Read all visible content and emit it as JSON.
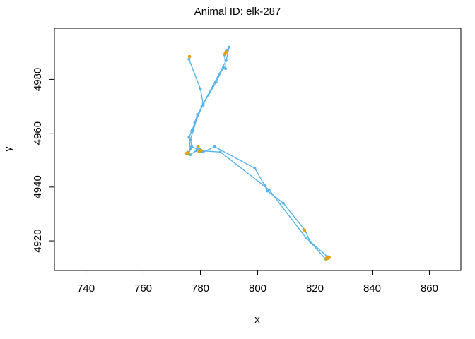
{
  "chart_data": {
    "type": "scatter",
    "title": "Animal ID: elk-287",
    "xlabel": "x",
    "ylabel": "y",
    "xlim": [
      729,
      871
    ],
    "ylim": [
      4909,
      4999
    ],
    "x_ticks": [
      740,
      760,
      780,
      800,
      820,
      840,
      860
    ],
    "y_ticks": [
      4920,
      4940,
      4960,
      4980
    ],
    "grid": false,
    "legend": "none",
    "colors": {
      "track": "#56B4E9",
      "highlight": "#E69F00",
      "axes": "#000000"
    },
    "series": [
      {
        "points": [
          [
            776.2,
            4988.5
          ],
          [
            776.0,
            4987.5
          ],
          [
            780.0,
            4976.5
          ],
          [
            781.0,
            4970.5
          ],
          [
            779.0,
            4967.0
          ],
          [
            778.0,
            4964.0
          ],
          [
            777.0,
            4960.5
          ],
          [
            776.0,
            4958.5
          ],
          [
            776.5,
            4954.0
          ],
          [
            776.0,
            4952.5
          ],
          [
            775.2,
            4952.5
          ],
          [
            775.5,
            4953.0
          ],
          [
            776.5,
            4952.0
          ],
          [
            778.5,
            4953.5
          ],
          [
            780.0,
            4954.0
          ],
          [
            779.0,
            4955.0
          ],
          [
            779.5,
            4953.0
          ],
          [
            781.0,
            4953.0
          ],
          [
            785.0,
            4955.0
          ],
          [
            799.0,
            4947.0
          ],
          [
            802.5,
            4940.5
          ],
          [
            803.5,
            4938.5
          ],
          [
            809.0,
            4934.0
          ],
          [
            816.5,
            4924.0
          ],
          [
            818.5,
            4919.5
          ],
          [
            823.8,
            4913.2
          ],
          [
            824.3,
            4913.4
          ],
          [
            824.8,
            4913.6
          ],
          [
            825.0,
            4913.9
          ],
          [
            824.6,
            4914.1
          ],
          [
            824.1,
            4913.8
          ],
          [
            824.5,
            4913.5
          ],
          [
            824.9,
            4913.7
          ],
          [
            817.0,
            4921.0
          ],
          [
            804.0,
            4939.0
          ],
          [
            787.0,
            4953.0
          ],
          [
            780.0,
            4953.5
          ],
          [
            777.0,
            4955.0
          ],
          [
            776.5,
            4957.5
          ],
          [
            777.5,
            4961.0
          ],
          [
            779.0,
            4966.5
          ],
          [
            780.5,
            4970.0
          ],
          [
            785.5,
            4979.0
          ],
          [
            788.0,
            4984.5
          ],
          [
            788.8,
            4984.0
          ],
          [
            788.5,
            4989.0
          ],
          [
            788.8,
            4990.0
          ],
          [
            789.2,
            4990.5
          ],
          [
            789.5,
            4991.0
          ],
          [
            790.0,
            4992.0
          ],
          [
            789.0,
            4987.0
          ],
          [
            781.0,
            4971.0
          ],
          [
            777.0,
            4961.0
          ]
        ],
        "highlight_points": [
          [
            776.2,
            4988.5
          ],
          [
            775.2,
            4952.5
          ],
          [
            775.7,
            4952.7
          ],
          [
            779.2,
            4955.0
          ],
          [
            779.6,
            4953.2
          ],
          [
            780.2,
            4953.6
          ],
          [
            816.4,
            4924.0
          ],
          [
            824.0,
            4913.3
          ],
          [
            824.6,
            4913.6
          ],
          [
            825.0,
            4913.9
          ],
          [
            824.3,
            4914.0
          ],
          [
            788.6,
            4989.5
          ],
          [
            789.3,
            4990.3
          ]
        ]
      }
    ]
  }
}
